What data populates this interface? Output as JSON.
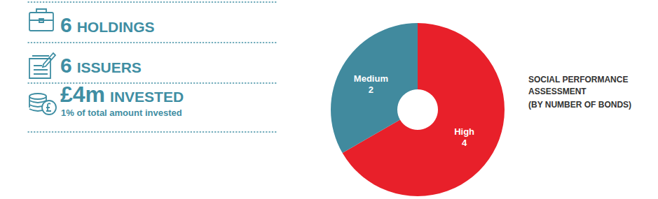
{
  "stats": [
    {
      "value": 6,
      "label": "HOLDINGS"
    },
    {
      "value": 6,
      "label": "ISSUERS"
    },
    {
      "value": "£4m",
      "label": "INVESTED",
      "note": "1% of total amount invested"
    }
  ],
  "chart_data": {
    "type": "pie",
    "title": "SOCIAL PERFORMANCE ASSESSMENT",
    "subtitle": "(BY NUMBER OF BONDS)",
    "categories": [
      "High",
      "Medium"
    ],
    "values": [
      4,
      2
    ],
    "colors": [
      "#e8202a",
      "#418a9e"
    ],
    "data_labels": true
  }
}
